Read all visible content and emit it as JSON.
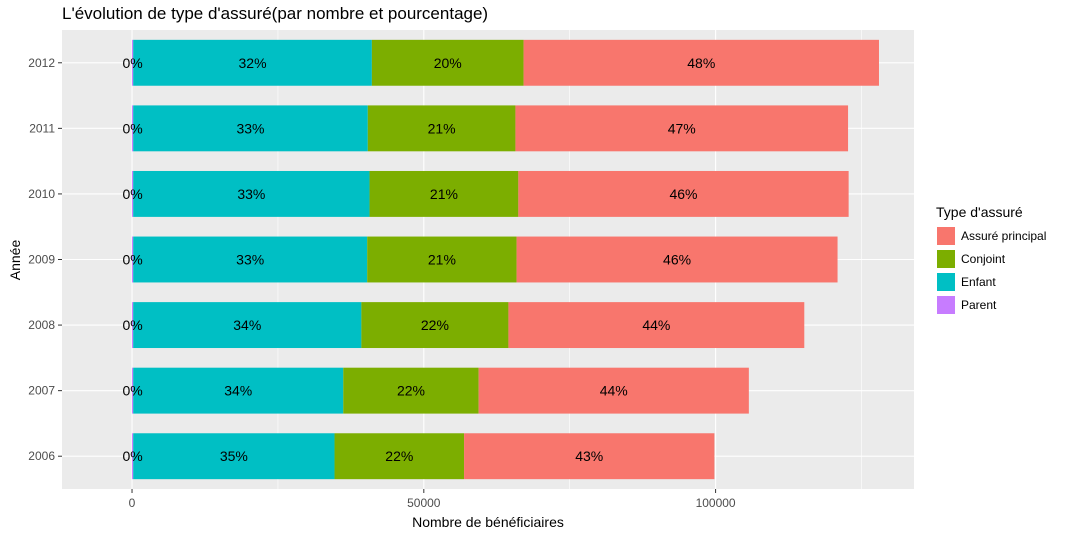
{
  "chart_data": {
    "type": "bar",
    "orientation": "horizontal",
    "stacked": true,
    "title": "L'évolution de type d'assuré(par nombre et pourcentage)",
    "xlabel": "Nombre de bénéficiaires",
    "ylabel": "Année",
    "categories": [
      "2006",
      "2007",
      "2008",
      "2009",
      "2010",
      "2011",
      "2012"
    ],
    "xlim": [
      -12000,
      134000
    ],
    "xticks": [
      0,
      50000,
      100000
    ],
    "xtick_labels": [
      "0",
      "50000",
      "100000"
    ],
    "grid": true,
    "legend_title": "Type d'assuré",
    "legend_position": "right",
    "series": [
      {
        "name": "Parent",
        "color": "#C77CFF",
        "values": [
          200,
          200,
          200,
          200,
          200,
          200,
          200
        ],
        "labels": [
          "0%",
          "0%",
          "0%",
          "0%",
          "0%",
          "0%",
          "0%"
        ]
      },
      {
        "name": "Enfant",
        "color": "#00BFC4",
        "values": [
          34500,
          36000,
          39100,
          40100,
          40500,
          40200,
          40900
        ],
        "labels": [
          "35%",
          "34%",
          "34%",
          "33%",
          "33%",
          "33%",
          "32%"
        ]
      },
      {
        "name": "Conjoint",
        "color": "#7CAE00",
        "values": [
          22200,
          23200,
          25200,
          25600,
          25500,
          25300,
          26000
        ],
        "labels": [
          "22%",
          "22%",
          "22%",
          "21%",
          "21%",
          "21%",
          "20%"
        ]
      },
      {
        "name": "Assuré principal",
        "color": "#F8766D",
        "values": [
          42900,
          46300,
          50700,
          55000,
          56600,
          57000,
          60900
        ],
        "labels": [
          "43%",
          "44%",
          "44%",
          "46%",
          "46%",
          "47%",
          "48%"
        ]
      }
    ],
    "legend_order": [
      "Assuré principal",
      "Conjoint",
      "Enfant",
      "Parent"
    ]
  }
}
